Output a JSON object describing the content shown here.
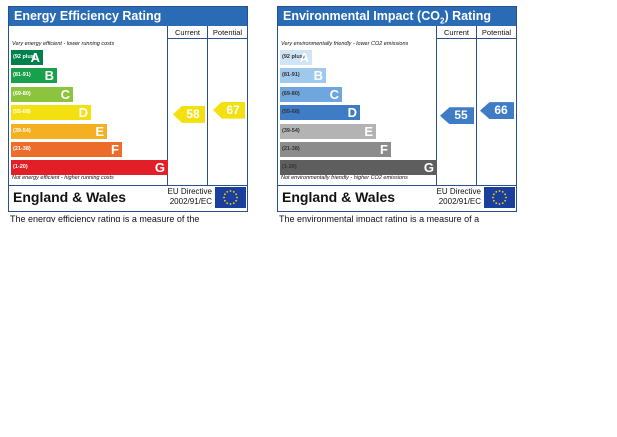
{
  "energy": {
    "title": "Energy Efficiency Rating",
    "current_label": "Current",
    "potential_label": "Potential",
    "note_top": "Very energy efficient - lower running costs",
    "note_bottom": "Not energy efficient - higher running costs",
    "bands": [
      {
        "range": "(92 plus)",
        "letter": "A",
        "color": "#00804a"
      },
      {
        "range": "(81-91)",
        "letter": "B",
        "color": "#18a04a"
      },
      {
        "range": "(69-80)",
        "letter": "C",
        "color": "#8cc43e"
      },
      {
        "range": "(55-68)",
        "letter": "D",
        "color": "#f3e010"
      },
      {
        "range": "(39-54)",
        "letter": "E",
        "color": "#f4b020"
      },
      {
        "range": "(21-38)",
        "letter": "F",
        "color": "#ec6c2a"
      },
      {
        "range": "(1-20)",
        "letter": "G",
        "color": "#e21f26"
      }
    ],
    "current": "58",
    "potential": "67",
    "arrow_color": "#f3e010",
    "footer": "England & Wales",
    "directive_line1": "EU Directive",
    "directive_line2": "2002/91/EC",
    "truncated_text": "The energy efficiency rating is a measure of the"
  },
  "environment": {
    "title": "Environmental Impact (CO",
    "title_sub": "2",
    "title_end": ") Rating",
    "current_label": "Current",
    "potential_label": "Potential",
    "note_top": "Very environmentally friendly - lower CO2 emissions",
    "note_bottom": "Not environmentally friendly - higher CO2 emissions",
    "bands": [
      {
        "range": "(92 plus)",
        "letter": "A",
        "color": "#cfe4f6"
      },
      {
        "range": "(81-91)",
        "letter": "B",
        "color": "#9ec8ec"
      },
      {
        "range": "(69-80)",
        "letter": "C",
        "color": "#6ea6dd"
      },
      {
        "range": "(55-68)",
        "letter": "D",
        "color": "#3e7cc6"
      },
      {
        "range": "(39-54)",
        "letter": "E",
        "color": "#b3b3b3"
      },
      {
        "range": "(21-38)",
        "letter": "F",
        "color": "#8c8c8c"
      },
      {
        "range": "(1-20)",
        "letter": "G",
        "color": "#5e5e5e"
      }
    ],
    "current": "55",
    "potential": "66",
    "arrow_color": "#3e7cc6",
    "footer": "England & Wales",
    "directive_line1": "EU Directive",
    "directive_line2": "2002/91/EC",
    "truncated_text": "The environmental impact rating is a measure of a"
  }
}
